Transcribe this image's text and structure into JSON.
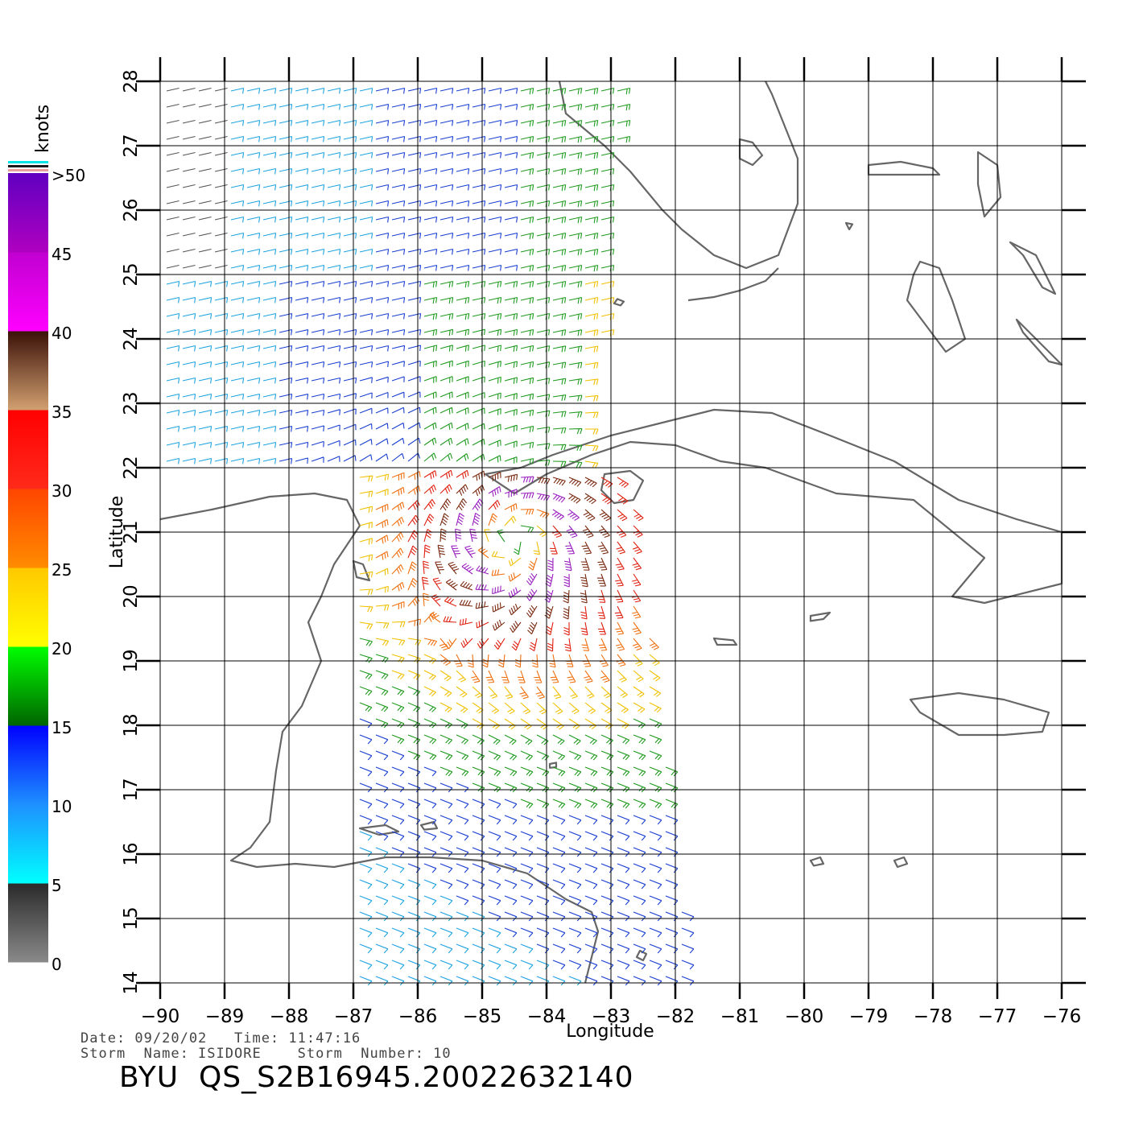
{
  "map": {
    "xlabel": "Longitude",
    "ylabel": "Latitude",
    "lon_range": [
      -90,
      -76
    ],
    "lat_range": [
      14,
      28
    ],
    "lon_ticks": [
      "−90",
      "−89",
      "−88",
      "−87",
      "−86",
      "−85",
      "−84",
      "−83",
      "−82",
      "−81",
      "−80",
      "−79",
      "−78",
      "−77",
      "−76"
    ],
    "lat_ticks": [
      "14",
      "15",
      "16",
      "17",
      "18",
      "19",
      "20",
      "21",
      "22",
      "23",
      "24",
      "25",
      "26",
      "27",
      "28"
    ],
    "grid": true,
    "coastline_color": "#666666",
    "storm_center": {
      "lon": -84.5,
      "lat": 20.9
    }
  },
  "colorbar": {
    "title": "knots",
    "labels": [
      "0",
      "5",
      "10",
      "15",
      "20",
      "25",
      "30",
      "35",
      "40",
      "45",
      ">50"
    ],
    "bands": [
      {
        "from": 0,
        "to": 5,
        "colors": [
          "#8a8a8a",
          "#2a2a2a"
        ]
      },
      {
        "from": 5,
        "to": 10,
        "colors": [
          "#00ffff",
          "#1e90ff"
        ]
      },
      {
        "from": 10,
        "to": 15,
        "colors": [
          "#1e90ff",
          "#0000ff"
        ]
      },
      {
        "from": 15,
        "to": 20,
        "colors": [
          "#006400",
          "#00ff00"
        ]
      },
      {
        "from": 20,
        "to": 25,
        "colors": [
          "#ffff00",
          "#ffc800"
        ]
      },
      {
        "from": 25,
        "to": 30,
        "colors": [
          "#ff8c00",
          "#ff4500"
        ]
      },
      {
        "from": 30,
        "to": 35,
        "colors": [
          "#ff2a1a",
          "#ff0000"
        ]
      },
      {
        "from": 35,
        "to": 40,
        "colors": [
          "#d2a070",
          "#3a1008"
        ]
      },
      {
        "from": 40,
        "to": 45,
        "colors": [
          "#ff00ff",
          "#c000d0"
        ]
      },
      {
        "from": 45,
        "to": 50,
        "colors": [
          "#b000c0",
          "#6000c0"
        ]
      }
    ]
  },
  "info": {
    "date_line": "Date: 09/20/02   Time: 11:47:16",
    "storm_line": "Storm  Name: ISIDORE    Storm  Number: 10",
    "product": "BYU  QS_S2B16945.20022632140"
  }
}
